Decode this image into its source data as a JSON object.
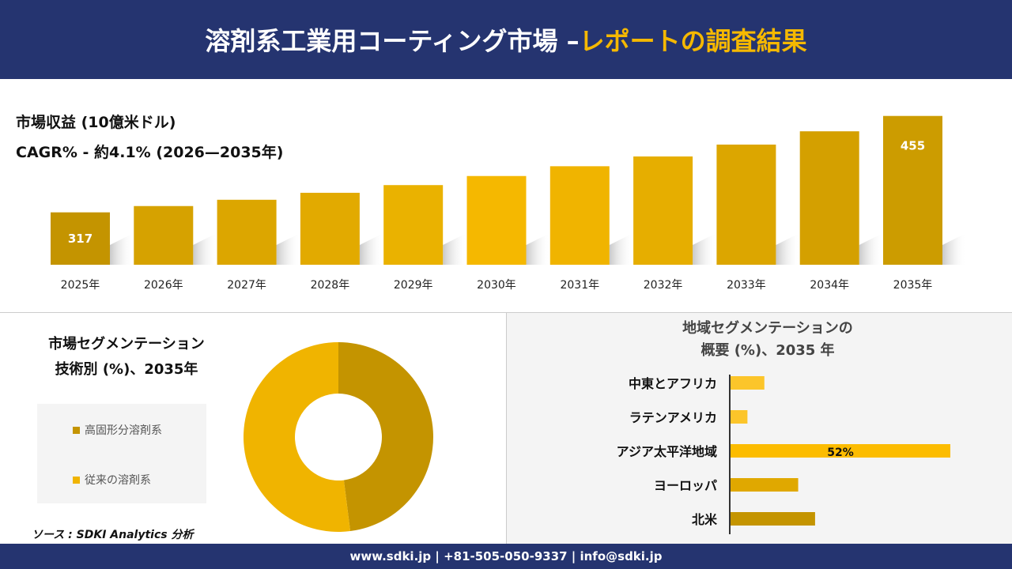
{
  "header": {
    "title_main": "溶剤系工業用コーティング市場 –",
    "title_highlight": "レポートの調査結果"
  },
  "revenue": {
    "title": "市場収益 (10億米ドル)",
    "cagr": "CAGR% - 約4.1% (2026—2035年)"
  },
  "segment": {
    "title_line1": "市場セグメンテーション",
    "title_line2": "技術別 (%)、2035年"
  },
  "region": {
    "title_line1": "地域セグメンテーションの",
    "title_line2": "概要 (%)、2035 年"
  },
  "source": "ソース : SDKI Analytics 分析",
  "footer": "www.sdki.jp | +81-505-050-9337 | info@sdki.jp",
  "colors": {
    "navy": "#253470",
    "accent": "#f5b800",
    "dark_gold": "#c49400",
    "gold": "#f0b400"
  },
  "chart_data": [
    {
      "type": "bar",
      "categories": [
        "2025年",
        "2026年",
        "2027年",
        "2028年",
        "2029年",
        "2030年",
        "2031年",
        "2032年",
        "2033年",
        "2034年",
        "2035年"
      ],
      "values": [
        317,
        326,
        335,
        345,
        356,
        369,
        383,
        397,
        414,
        433,
        455
      ],
      "data_labels": {
        "0": "317",
        "10": "455"
      },
      "grid": false
    },
    {
      "type": "pie",
      "donut": true,
      "categories": [
        "高固形分溶剤系",
        "従来の溶剤系"
      ],
      "values": [
        48,
        52
      ],
      "colors": [
        "#c49400",
        "#f0b400"
      ],
      "legend": "left"
    },
    {
      "type": "bar",
      "orientation": "horizontal",
      "categories": [
        "中東とアフリカ",
        "ラテンアメリカ",
        "アジア太平洋地域",
        "ヨーロッパ",
        "北米"
      ],
      "values": [
        8,
        4,
        52,
        16,
        20
      ],
      "data_labels": {
        "2": "52%"
      },
      "colors": [
        "#fcc52a",
        "#fcc52a",
        "#fcbc00",
        "#e0a800",
        "#c49400"
      ]
    }
  ]
}
